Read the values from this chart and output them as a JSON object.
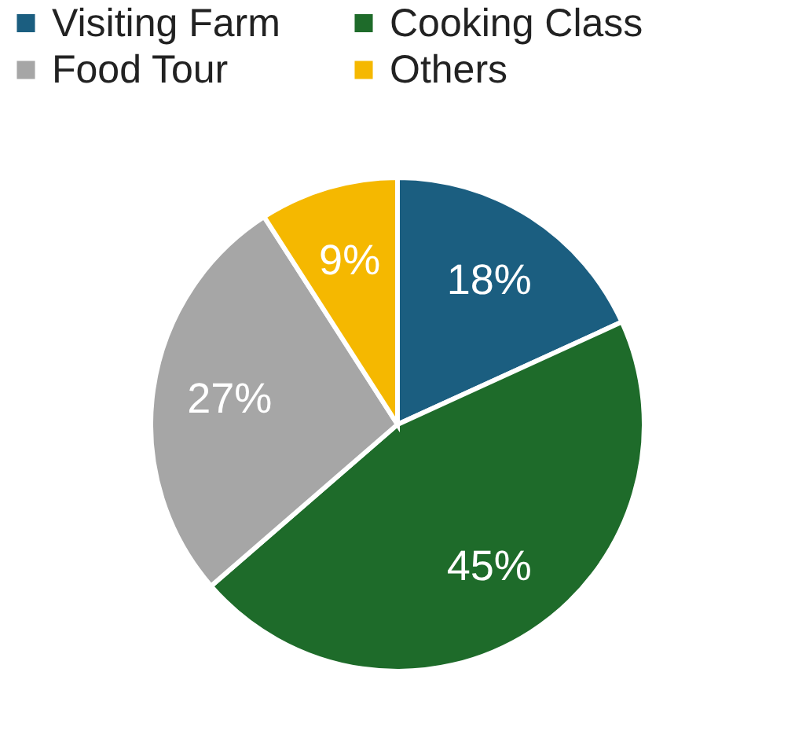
{
  "chart_data": {
    "type": "pie",
    "categories": [
      "Visiting Farm",
      "Cooking Class",
      "Food Tour",
      "Others"
    ],
    "values": [
      18,
      45,
      27,
      9
    ],
    "colors": [
      "#1b5e80",
      "#1e6b2a",
      "#a6a6a6",
      "#f5b800"
    ],
    "value_labels": [
      "18%",
      "45%",
      "27%",
      "9%"
    ],
    "legend": "top"
  }
}
